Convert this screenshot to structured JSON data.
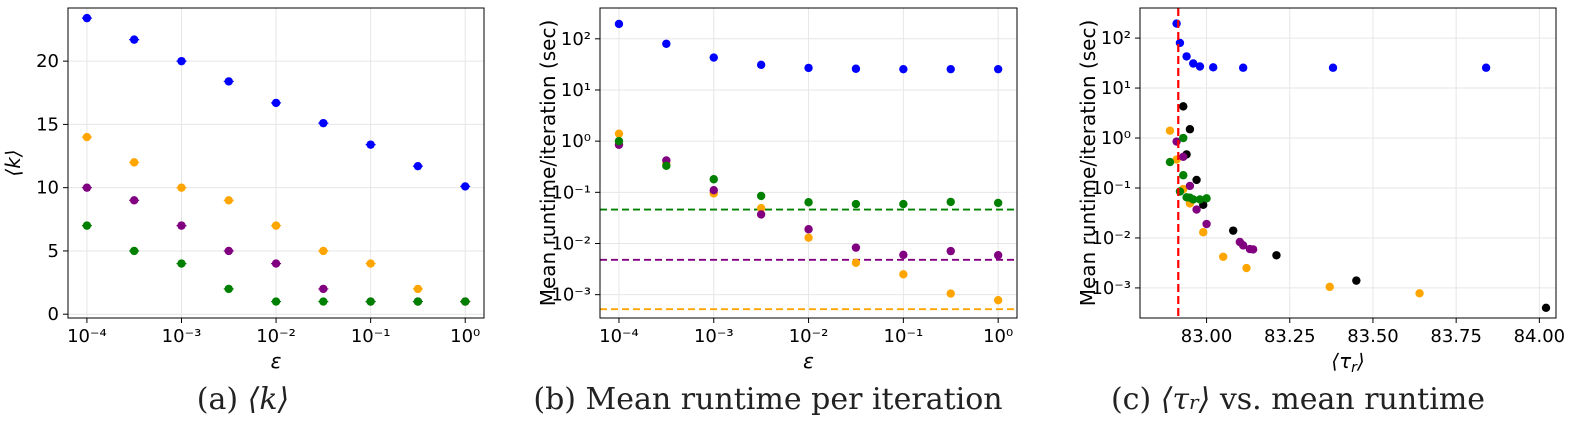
{
  "colors": {
    "blue": "#0000ff",
    "orange": "#ffa500",
    "purple": "#800080",
    "green": "#008000",
    "black": "#000000",
    "red": "#ff0000"
  },
  "captions": {
    "a_prefix": "(a) ",
    "a_math": "⟨k⟩",
    "b": "(b) Mean runtime per iteration",
    "c_prefix": "(c) ",
    "c_math_open": "⟨τ",
    "c_math_sub": "r",
    "c_math_close": "⟩",
    "c_suffix": " vs. mean runtime"
  },
  "chart_data": [
    {
      "id": "a",
      "type": "scatter",
      "error_bars": true,
      "xlabel": "ε",
      "ylabel": "⟨k⟩",
      "xscale": "log",
      "yscale": "linear",
      "xlim": [
        6.31e-05,
        1.58
      ],
      "ylim": [
        -0.3,
        24.2
      ],
      "xticks": [
        0.0001,
        0.001,
        0.01,
        0.1,
        1
      ],
      "xticklabels": [
        "10⁻⁴",
        "10⁻³",
        "10⁻²",
        "10⁻¹",
        "10⁰"
      ],
      "yticks": [
        0,
        5,
        10,
        15,
        20
      ],
      "yticklabels": [
        "0",
        "5",
        "10",
        "15",
        "20"
      ],
      "grid": true,
      "x": [
        0.0001,
        0.000316,
        0.001,
        0.00316,
        0.01,
        0.0316,
        0.1,
        0.316,
        1
      ],
      "series": [
        {
          "color": "blue",
          "values": [
            23.4,
            21.7,
            20.0,
            18.4,
            16.7,
            15.1,
            13.4,
            11.7,
            10.1
          ]
        },
        {
          "color": "orange",
          "values": [
            14,
            12,
            10,
            9,
            7,
            5,
            4,
            2,
            1
          ]
        },
        {
          "color": "purple",
          "values": [
            10,
            9,
            7,
            5,
            4,
            2,
            1,
            1,
            1
          ]
        },
        {
          "color": "green",
          "values": [
            7,
            5,
            4,
            2,
            1,
            1,
            1,
            1,
            1
          ]
        }
      ]
    },
    {
      "id": "b",
      "type": "scatter",
      "xlabel": "ε",
      "ylabel": "Mean runtime/iteration (sec)",
      "xscale": "log",
      "yscale": "log",
      "xlim": [
        6.31e-05,
        1.58
      ],
      "ylim": [
        0.00035,
        400
      ],
      "xticks": [
        0.0001,
        0.001,
        0.01,
        0.1,
        1
      ],
      "xticklabels": [
        "10⁻⁴",
        "10⁻³",
        "10⁻²",
        "10⁻¹",
        "10⁰"
      ],
      "yticks": [
        0.001,
        0.01,
        0.1,
        1,
        10,
        100
      ],
      "yticklabels": [
        "10⁻³",
        "10⁻²",
        "10⁻¹",
        "10⁰",
        "10¹",
        "10²"
      ],
      "grid": true,
      "x": [
        0.0001,
        0.000316,
        0.001,
        0.00316,
        0.01,
        0.0316,
        0.1,
        0.316,
        1
      ],
      "series": [
        {
          "color": "blue",
          "values": [
            195,
            80,
            43,
            31,
            27,
            26,
            25.5,
            25.5,
            25.5
          ]
        },
        {
          "color": "orange",
          "values": [
            1.4,
            0.37,
            0.095,
            0.049,
            0.013,
            0.0042,
            0.0025,
            0.00105,
            0.00078
          ]
        },
        {
          "color": "purple",
          "values": [
            0.85,
            0.42,
            0.11,
            0.037,
            0.019,
            0.0083,
            0.006,
            0.0071,
            0.0059
          ]
        },
        {
          "color": "green",
          "values": [
            1.0,
            0.33,
            0.18,
            0.085,
            0.064,
            0.059,
            0.059,
            0.065,
            0.062
          ]
        }
      ],
      "hlines": [
        {
          "color": "green",
          "y": 0.046,
          "style": "dashed"
        },
        {
          "color": "purple",
          "y": 0.0048,
          "style": "dashed"
        },
        {
          "color": "orange",
          "y": 0.00052,
          "style": "dashed"
        }
      ]
    },
    {
      "id": "c",
      "type": "scatter",
      "xlabel": "⟨τ_r⟩",
      "ylabel": "Mean runtime/iteration (sec)",
      "xscale": "linear",
      "yscale": "log",
      "xlim": [
        82.8,
        84.05
      ],
      "ylim": [
        0.00025,
        400
      ],
      "xticks": [
        83.0,
        83.25,
        83.5,
        83.75,
        84.0
      ],
      "xticklabels": [
        "83.00",
        "83.25",
        "83.50",
        "83.75",
        "84.00"
      ],
      "yticks": [
        0.001,
        0.01,
        0.1,
        1,
        10,
        100
      ],
      "yticklabels": [
        "10⁻³",
        "10⁻²",
        "10⁻¹",
        "10⁰",
        "10¹",
        "10²"
      ],
      "grid": true,
      "vline": {
        "color": "red",
        "x": 82.915,
        "style": "dashed"
      },
      "series": [
        {
          "color": "blue",
          "points": [
            [
              82.91,
              195
            ],
            [
              82.92,
              80
            ],
            [
              82.94,
              43
            ],
            [
              82.96,
              31
            ],
            [
              82.98,
              27
            ],
            [
              83.02,
              26
            ],
            [
              83.11,
              25.5
            ],
            [
              83.38,
              25.5
            ],
            [
              83.84,
              25.5
            ]
          ]
        },
        {
          "color": "black",
          "points": [
            [
              82.93,
              4.3
            ],
            [
              82.95,
              1.5
            ],
            [
              82.94,
              0.47
            ],
            [
              82.97,
              0.145
            ],
            [
              82.99,
              0.046
            ],
            [
              83.08,
              0.014
            ],
            [
              83.21,
              0.0045
            ],
            [
              83.45,
              0.0014
            ],
            [
              84.02,
              0.0004
            ]
          ]
        },
        {
          "color": "orange",
          "points": [
            [
              82.89,
              1.4
            ],
            [
              82.91,
              0.37
            ],
            [
              82.93,
              0.095
            ],
            [
              82.95,
              0.049
            ],
            [
              82.99,
              0.013
            ],
            [
              83.05,
              0.0042
            ],
            [
              83.12,
              0.0025
            ],
            [
              83.37,
              0.00105
            ],
            [
              83.64,
              0.00078
            ]
          ]
        },
        {
          "color": "purple",
          "points": [
            [
              82.91,
              0.85
            ],
            [
              82.93,
              0.42
            ],
            [
              82.95,
              0.11
            ],
            [
              82.97,
              0.037
            ],
            [
              83.0,
              0.019
            ],
            [
              83.1,
              0.0083
            ],
            [
              83.13,
              0.006
            ],
            [
              83.11,
              0.0071
            ],
            [
              83.14,
              0.0059
            ]
          ]
        },
        {
          "color": "green",
          "points": [
            [
              82.93,
              1.0
            ],
            [
              82.89,
              0.33
            ],
            [
              82.93,
              0.18
            ],
            [
              82.92,
              0.085
            ],
            [
              82.95,
              0.064
            ],
            [
              82.98,
              0.059
            ],
            [
              82.96,
              0.059
            ],
            [
              83.0,
              0.062
            ],
            [
              82.94,
              0.065
            ]
          ]
        }
      ]
    }
  ]
}
